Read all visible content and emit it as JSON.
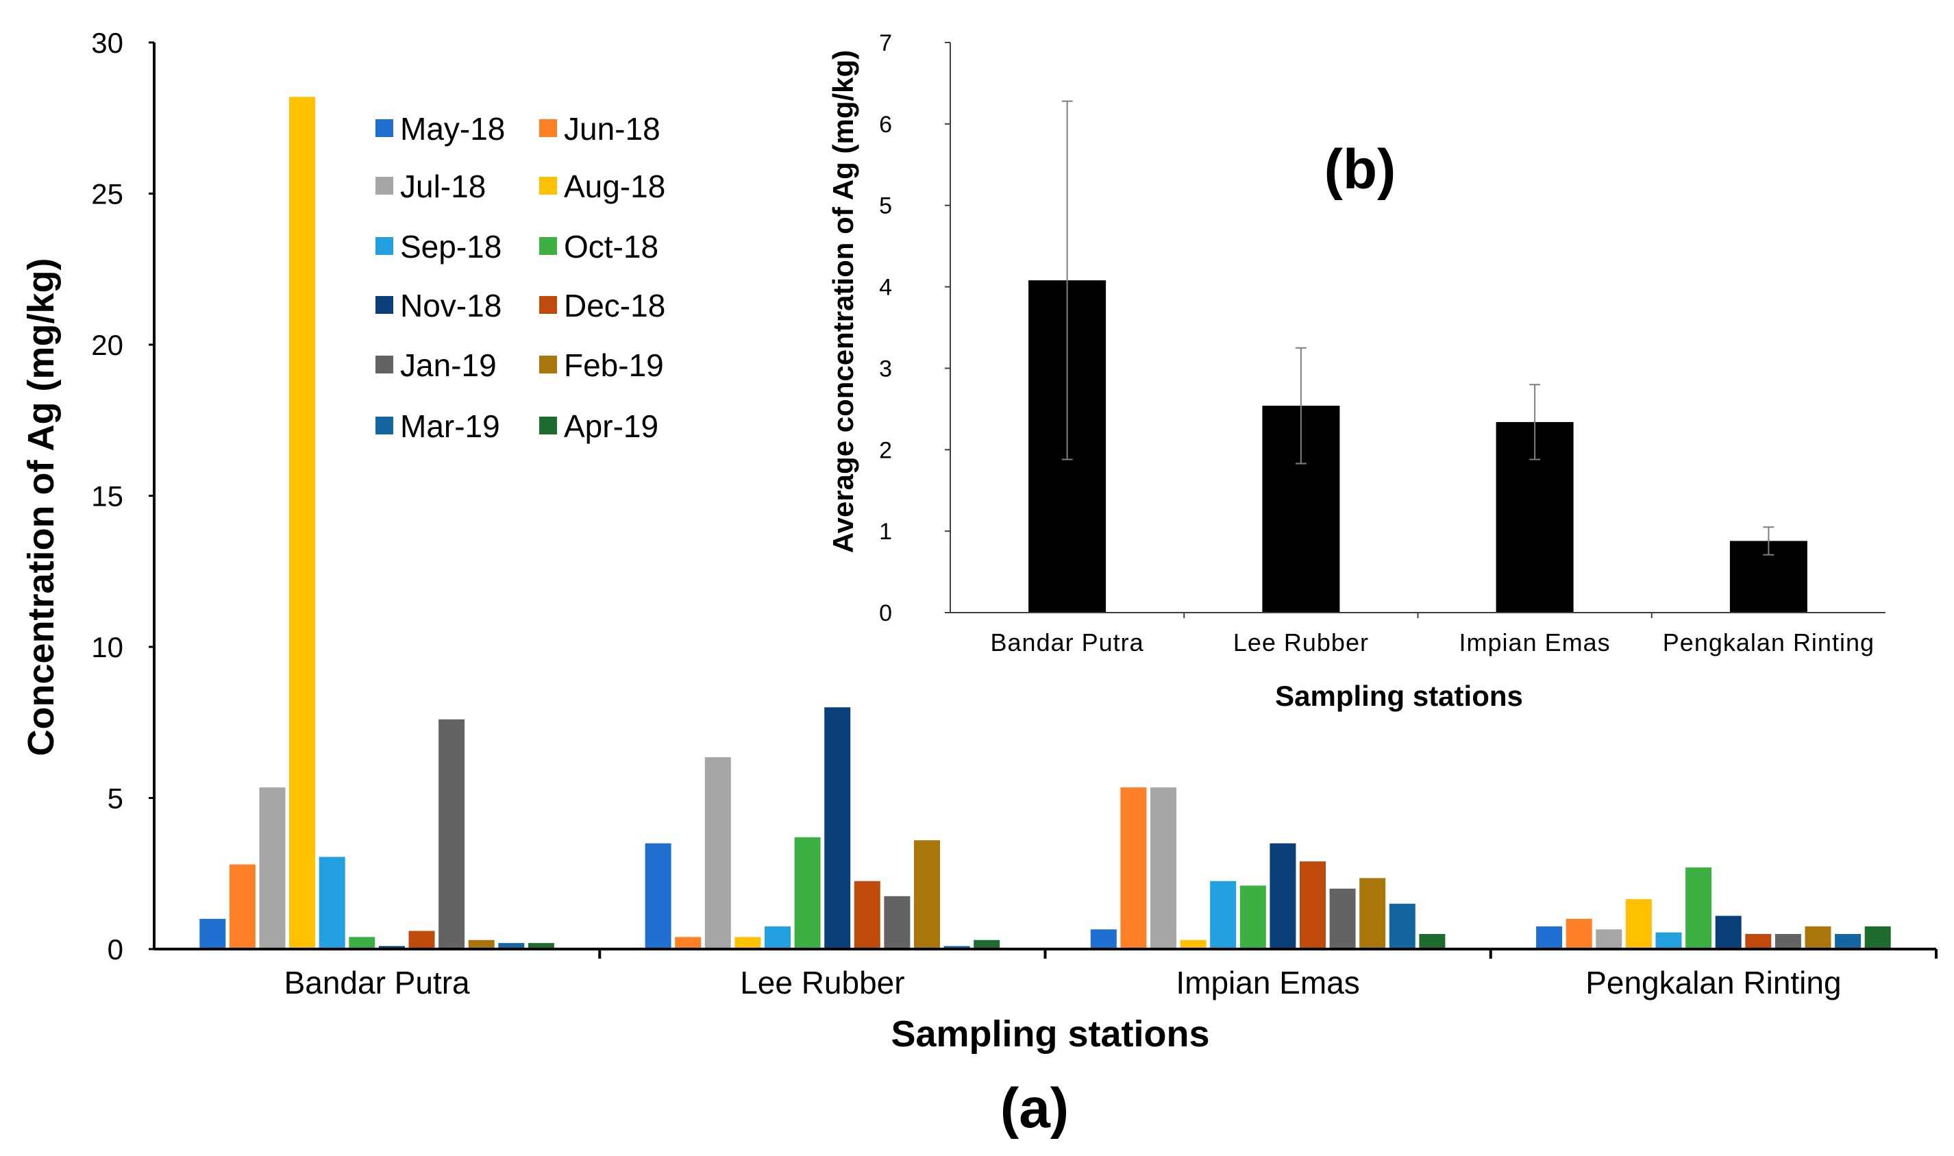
{
  "chart_data": [
    {
      "type": "bar",
      "panel_label": "(a)",
      "title": "",
      "xlabel": "Sampling stations",
      "ylabel": "Concentration of Ag (mg/kg)",
      "ylim": [
        0,
        30
      ],
      "yticks": [
        "0",
        "5",
        "10",
        "15",
        "20",
        "25",
        "30"
      ],
      "categories": [
        "Bandar Putra",
        "Lee Rubber",
        "Impian Emas",
        "Pengkalan Rinting"
      ],
      "legend_position": "top-left",
      "series": [
        {
          "name": "May-18",
          "color": "#1F6FD0",
          "values": [
            1.0,
            3.5,
            0.65,
            0.75
          ]
        },
        {
          "name": "Jun-18",
          "color": "#FF7F27",
          "values": [
            2.8,
            0.4,
            5.35,
            1.0
          ]
        },
        {
          "name": "Jul-18",
          "color": "#A6A6A6",
          "values": [
            5.35,
            6.35,
            5.35,
            0.65
          ]
        },
        {
          "name": "Aug-18",
          "color": "#FFC000",
          "values": [
            28.2,
            0.4,
            0.3,
            1.65
          ]
        },
        {
          "name": "Sep-18",
          "color": "#22A0E0",
          "values": [
            3.05,
            0.75,
            2.25,
            0.55
          ]
        },
        {
          "name": "Oct-18",
          "color": "#3CB043",
          "values": [
            0.4,
            3.7,
            2.1,
            2.7
          ]
        },
        {
          "name": "Nov-18",
          "color": "#0B3F7A",
          "values": [
            0.1,
            8.0,
            3.5,
            1.1
          ]
        },
        {
          "name": "Dec-18",
          "color": "#C0490C",
          "values": [
            0.6,
            2.25,
            2.9,
            0.5
          ]
        },
        {
          "name": "Jan-19",
          "color": "#636363",
          "values": [
            7.6,
            1.75,
            2.0,
            0.5
          ]
        },
        {
          "name": "Feb-19",
          "color": "#A8760A",
          "values": [
            0.3,
            3.6,
            2.35,
            0.75
          ]
        },
        {
          "name": "Mar-19",
          "color": "#1466A0",
          "values": [
            0.2,
            0.1,
            1.5,
            0.5
          ]
        },
        {
          "name": "Apr-19",
          "color": "#1E6B2E",
          "values": [
            0.2,
            0.3,
            0.5,
            0.75
          ]
        }
      ]
    },
    {
      "type": "bar",
      "panel_label": "(b)",
      "title": "",
      "xlabel": "Sampling stations",
      "ylabel": "Average concentration of Ag (mg/kg)",
      "ylim": [
        0,
        7
      ],
      "yticks": [
        "0",
        "1",
        "2",
        "3",
        "4",
        "5",
        "6",
        "7"
      ],
      "categories": [
        "Bandar Putra",
        "Lee Rubber",
        "Impian Emas",
        "Pengkalan Rinting"
      ],
      "values": [
        4.08,
        2.54,
        2.34,
        0.88
      ],
      "error_bars": [
        2.2,
        0.71,
        0.46,
        0.17
      ],
      "bar_color": "#000000"
    }
  ]
}
